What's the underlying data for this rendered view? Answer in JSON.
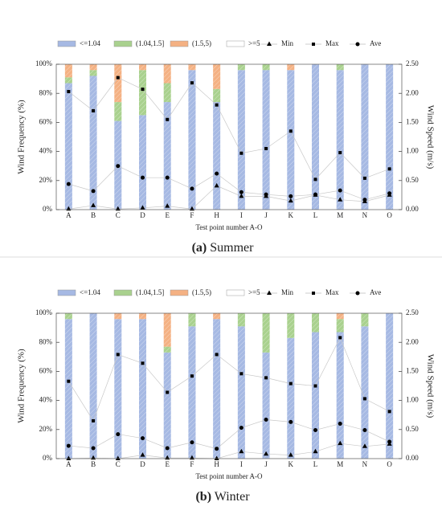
{
  "chart_data": [
    {
      "type": "bar",
      "stacked": true,
      "caption": {
        "label": "(a)",
        "text": "Summer"
      },
      "xlabel": "Test point number A-O",
      "ylabel": "Wind  Frequency  (%)",
      "y2label": "Wind  Speed  (m/s)",
      "categories": [
        "A",
        "B",
        "C",
        "D",
        "E",
        "F",
        "H",
        "I",
        "J",
        "K",
        "L",
        "M",
        "N",
        "O"
      ],
      "ylim": [
        0,
        100
      ],
      "yticks": [
        {
          "value": 0,
          "label": "0%"
        },
        {
          "value": 20,
          "label": "20%"
        },
        {
          "value": 40,
          "label": "40%"
        },
        {
          "value": 60,
          "label": "60%"
        },
        {
          "value": 80,
          "label": "80%"
        },
        {
          "value": 100,
          "label": "100%"
        }
      ],
      "y2lim": [
        0,
        2.5
      ],
      "y2ticks": [
        {
          "value": 0,
          "label": "0.00"
        },
        {
          "value": 0.5,
          "label": "0.50"
        },
        {
          "value": 1,
          "label": "1.00"
        },
        {
          "value": 1.5,
          "label": "1.50"
        },
        {
          "value": 2,
          "label": "2.00"
        },
        {
          "value": 2.5,
          "label": "2.50"
        }
      ],
      "series": [
        {
          "name": "<=1.04",
          "color": "#a6b9e3",
          "values": [
            87,
            92,
            61,
            65,
            74,
            96,
            74,
            96,
            96,
            96,
            100,
            96,
            100,
            100
          ]
        },
        {
          "name": "(1.04,1.5]",
          "color": "#a9d18e",
          "values": [
            4,
            4,
            13,
            31,
            13,
            0,
            9,
            4,
            4,
            0,
            0,
            4,
            0,
            0
          ]
        },
        {
          "name": "(1.5,5)",
          "color": "#f4b183",
          "values": [
            9,
            4,
            26,
            4,
            13,
            4,
            17,
            0,
            0,
            4,
            0,
            0,
            0,
            0
          ]
        },
        {
          "name": ">=5",
          "color": "#ffffff",
          "values": [
            0,
            0,
            0,
            0,
            0,
            0,
            0,
            0,
            0,
            0,
            0,
            0,
            0,
            0
          ]
        },
        {
          "name": "Min",
          "color": "#000000",
          "axis": "y2",
          "marker": "triangle",
          "values": [
            0.01,
            0.07,
            0.01,
            0.03,
            0.06,
            0.01,
            0.41,
            0.23,
            0.23,
            0.15,
            0.25,
            0.17,
            0.14,
            0.25
          ]
        },
        {
          "name": "Max",
          "color": "#000000",
          "axis": "y2",
          "marker": "square",
          "values": [
            2.03,
            1.7,
            2.27,
            2.07,
            1.55,
            2.18,
            1.8,
            0.97,
            1.05,
            1.35,
            0.52,
            0.98,
            0.54,
            0.7
          ]
        },
        {
          "name": "Ave",
          "color": "#000000",
          "axis": "y2",
          "marker": "circle",
          "values": [
            0.44,
            0.32,
            0.75,
            0.55,
            0.55,
            0.36,
            0.62,
            0.3,
            0.26,
            0.23,
            0.26,
            0.33,
            0.17,
            0.28
          ]
        }
      ]
    },
    {
      "type": "bar",
      "stacked": true,
      "caption": {
        "label": "(b)",
        "text": "Winter"
      },
      "xlabel": "Test point number A-O",
      "ylabel": "Wind  Frequency  (%)",
      "y2label": "Wind  Speed  (m/s)",
      "categories": [
        "A",
        "B",
        "C",
        "D",
        "E",
        "F",
        "H",
        "I",
        "J",
        "K",
        "L",
        "M",
        "N",
        "O"
      ],
      "ylim": [
        0,
        100
      ],
      "yticks": [
        {
          "value": 0,
          "label": "0%"
        },
        {
          "value": 20,
          "label": "20%"
        },
        {
          "value": 40,
          "label": "40%"
        },
        {
          "value": 60,
          "label": "60%"
        },
        {
          "value": 80,
          "label": "80%"
        },
        {
          "value": 100,
          "label": "100%"
        }
      ],
      "y2lim": [
        0,
        2.5
      ],
      "y2ticks": [
        {
          "value": 0,
          "label": "0.00"
        },
        {
          "value": 0.5,
          "label": "0.50"
        },
        {
          "value": 1,
          "label": "1.00"
        },
        {
          "value": 1.5,
          "label": "1.50"
        },
        {
          "value": 2,
          "label": "2.00"
        },
        {
          "value": 2.5,
          "label": "2.50"
        }
      ],
      "series": [
        {
          "name": "<=1.04",
          "color": "#a6b9e3",
          "values": [
            96,
            100,
            96,
            96,
            73,
            91,
            96,
            91,
            73,
            83,
            87,
            87,
            91,
            100
          ]
        },
        {
          "name": "(1.04,1.5]",
          "color": "#a9d18e",
          "values": [
            4,
            0,
            0,
            0,
            4,
            9,
            0,
            9,
            27,
            17,
            13,
            9,
            9,
            0
          ]
        },
        {
          "name": "(1.5,5)",
          "color": "#f4b183",
          "values": [
            0,
            0,
            4,
            4,
            23,
            0,
            4,
            0,
            0,
            0,
            0,
            4,
            0,
            0
          ]
        },
        {
          "name": ">=5",
          "color": "#ffffff",
          "values": [
            0,
            0,
            0,
            0,
            0,
            0,
            0,
            0,
            0,
            0,
            0,
            0,
            0,
            0
          ]
        },
        {
          "name": "Min",
          "color": "#000000",
          "axis": "y2",
          "marker": "triangle",
          "values": [
            0,
            0.01,
            0,
            0.06,
            0.01,
            0.01,
            0,
            0.12,
            0.08,
            0.06,
            0.12,
            0.26,
            0.21,
            0.25
          ]
        },
        {
          "name": "Max",
          "color": "#000000",
          "axis": "y2",
          "marker": "square",
          "values": [
            1.33,
            0.65,
            1.79,
            1.64,
            1.14,
            1.42,
            1.79,
            1.46,
            1.39,
            1.29,
            1.25,
            2.08,
            1.03,
            0.81
          ]
        },
        {
          "name": "Ave",
          "color": "#000000",
          "axis": "y2",
          "marker": "circle",
          "values": [
            0.22,
            0.18,
            0.42,
            0.35,
            0.18,
            0.28,
            0.17,
            0.53,
            0.67,
            0.63,
            0.49,
            0.6,
            0.49,
            0.29
          ]
        }
      ]
    }
  ]
}
